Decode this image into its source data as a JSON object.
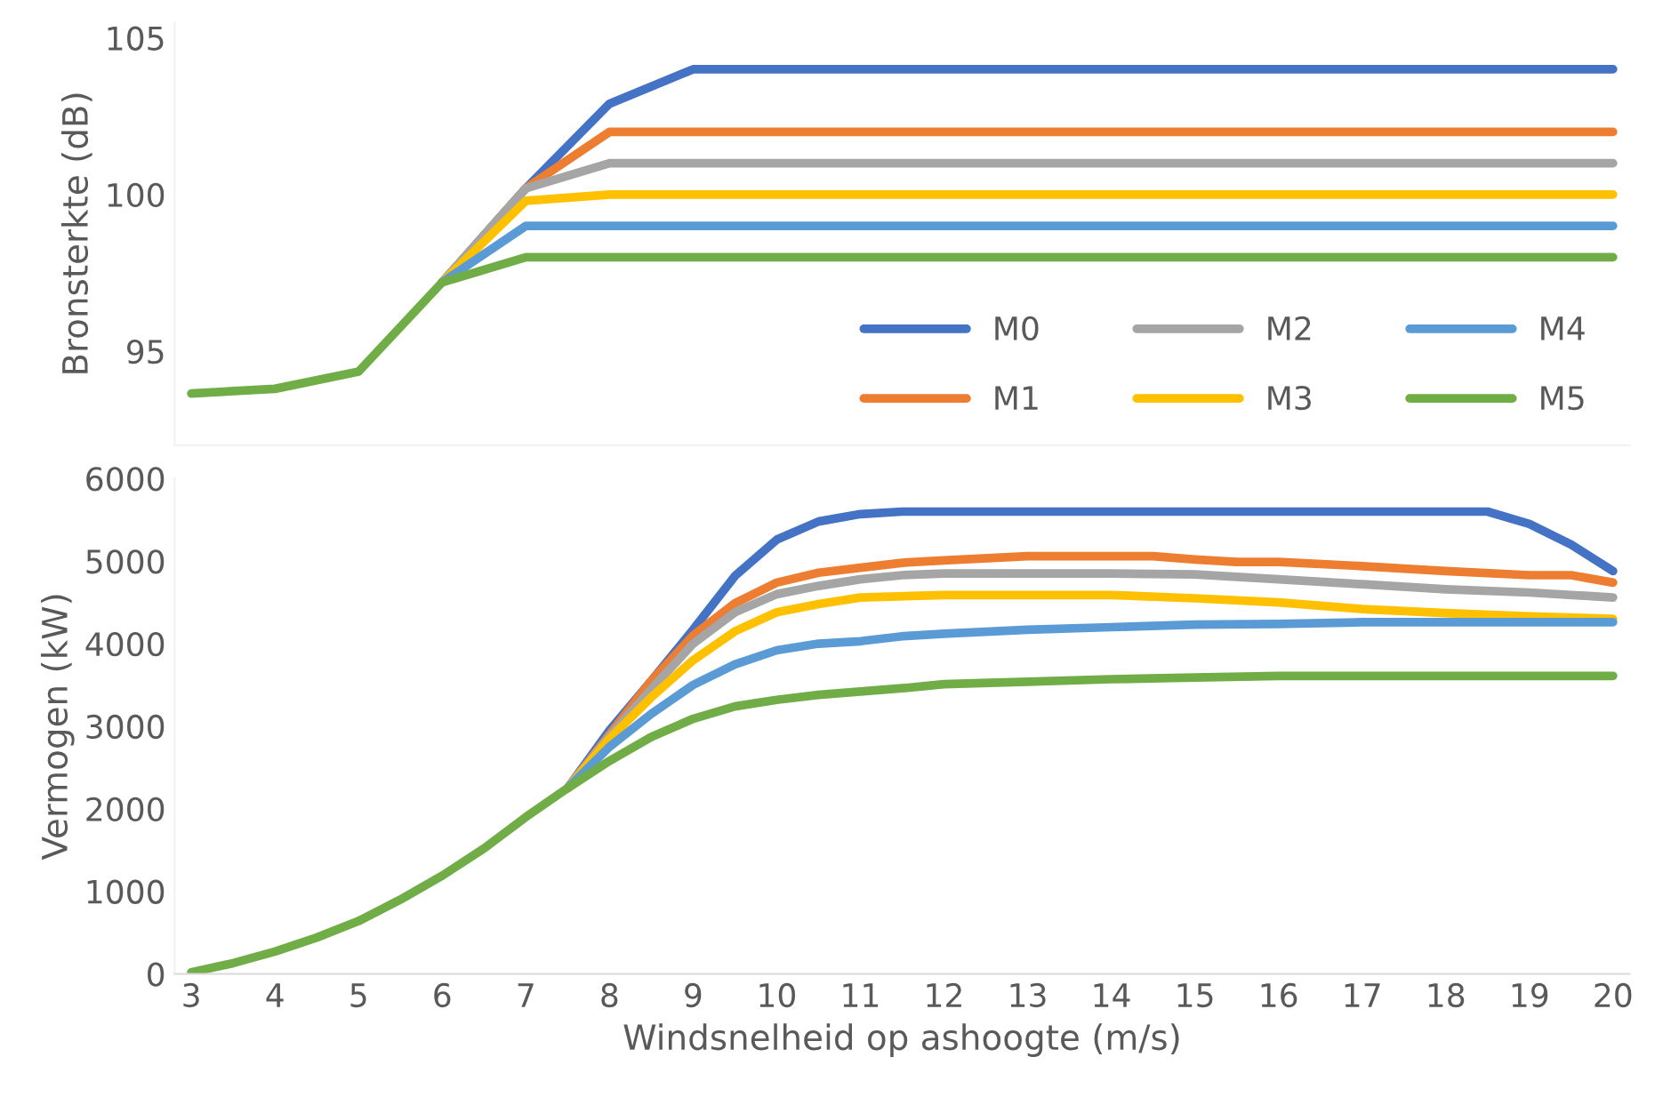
{
  "chart_data": [
    {
      "type": "line",
      "ylabel": "Bronsterkte (dB)",
      "xlim": [
        2.8,
        20.2
      ],
      "ylim": [
        92,
        105.5
      ],
      "yticks": [
        95,
        100,
        105
      ],
      "tick_labels": "y",
      "grid": false,
      "legend": "bottom right",
      "marker": "none",
      "line_style": "solid",
      "series": [
        {
          "name": "M0",
          "color": "#4472c4",
          "x": [
            6,
            7,
            8,
            9,
            20
          ],
          "values": [
            97.2,
            100.2,
            102.9,
            104,
            104
          ]
        },
        {
          "name": "M1",
          "color": "#ed7d31",
          "x": [
            6,
            7,
            8,
            20
          ],
          "values": [
            97.2,
            100.2,
            102,
            102
          ]
        },
        {
          "name": "M2",
          "color": "#a5a5a5",
          "x": [
            6,
            7,
            8,
            20
          ],
          "values": [
            97.2,
            100.2,
            101,
            101
          ]
        },
        {
          "name": "M3",
          "color": "#ffc000",
          "x": [
            6,
            7,
            8,
            20
          ],
          "values": [
            97.2,
            99.8,
            100,
            100
          ]
        },
        {
          "name": "M4",
          "color": "#5b9bd5",
          "x": [
            6,
            7,
            20
          ],
          "values": [
            97.2,
            99,
            99
          ]
        },
        {
          "name": "M5",
          "color": "#70ad47",
          "x": [
            3,
            4,
            5,
            6,
            7,
            20
          ],
          "values": [
            93.65,
            93.8,
            94.35,
            97.2,
            98,
            98
          ]
        }
      ]
    },
    {
      "type": "line",
      "xlabel": "Windsnelheid op ashoogte (m/s)",
      "ylabel": "Vermogen (kW)",
      "xlim": [
        2.8,
        20.2
      ],
      "ylim": [
        0,
        6000
      ],
      "xticks": [
        3,
        4,
        5,
        6,
        7,
        8,
        9,
        10,
        11,
        12,
        13,
        14,
        15,
        16,
        17,
        18,
        19,
        20
      ],
      "yticks": [
        0,
        1000,
        2000,
        3000,
        4000,
        5000,
        6000
      ],
      "grid": false,
      "legend": false,
      "marker": "none",
      "line_style": "solid",
      "series": [
        {
          "color": "#4472c4",
          "x": [
            7.5,
            8,
            8.5,
            9,
            9.5,
            10,
            10.5,
            11,
            11.5,
            18.5,
            19,
            19.5,
            20
          ],
          "values": [
            2250,
            2950,
            3550,
            4170,
            4820,
            5260,
            5480,
            5570,
            5600,
            5600,
            5450,
            5200,
            4880
          ]
        },
        {
          "color": "#ed7d31",
          "x": [
            7.5,
            8,
            8.5,
            9,
            9.5,
            10,
            10.5,
            11,
            11.5,
            12,
            13,
            14,
            14.5,
            15,
            15.5,
            16,
            17,
            18,
            19,
            19.5,
            20
          ],
          "values": [
            2250,
            2900,
            3550,
            4100,
            4490,
            4740,
            4860,
            4920,
            4980,
            5010,
            5060,
            5060,
            5060,
            5020,
            4990,
            4990,
            4940,
            4880,
            4830,
            4830,
            4740
          ]
        },
        {
          "color": "#a5a5a5",
          "x": [
            7.5,
            8,
            8.5,
            9,
            9.5,
            10,
            10.5,
            11,
            11.5,
            12,
            13,
            14,
            15,
            16,
            17,
            18,
            19,
            20
          ],
          "values": [
            2250,
            2880,
            3450,
            4000,
            4380,
            4600,
            4700,
            4780,
            4830,
            4850,
            4850,
            4850,
            4840,
            4780,
            4720,
            4660,
            4620,
            4560
          ]
        },
        {
          "color": "#ffc000",
          "x": [
            7.5,
            8,
            8.5,
            9,
            9.5,
            10,
            10.5,
            11,
            12,
            13,
            14,
            15,
            16,
            17,
            18,
            19,
            20
          ],
          "values": [
            2250,
            2850,
            3350,
            3800,
            4150,
            4380,
            4480,
            4560,
            4590,
            4590,
            4590,
            4550,
            4500,
            4420,
            4370,
            4330,
            4300
          ]
        },
        {
          "color": "#5b9bd5",
          "x": [
            7.5,
            8,
            8.5,
            9,
            9.5,
            10,
            10.5,
            11,
            11.5,
            12,
            13,
            14,
            15,
            16,
            17,
            18,
            19,
            20
          ],
          "values": [
            2250,
            2750,
            3150,
            3500,
            3750,
            3920,
            4000,
            4030,
            4090,
            4120,
            4170,
            4200,
            4230,
            4240,
            4260,
            4260,
            4260,
            4260
          ]
        },
        {
          "color": "#70ad47",
          "x": [
            3,
            3.5,
            4,
            4.5,
            5,
            5.5,
            6,
            6.5,
            7,
            7.5,
            8,
            8.5,
            9,
            9.5,
            10,
            10.5,
            11,
            11.5,
            12,
            13,
            14,
            15,
            16,
            17,
            18,
            19,
            20
          ],
          "values": [
            20,
            130,
            270,
            440,
            640,
            900,
            1190,
            1520,
            1900,
            2250,
            2580,
            2870,
            3090,
            3240,
            3320,
            3380,
            3420,
            3460,
            3510,
            3540,
            3570,
            3590,
            3610,
            3610,
            3610,
            3610,
            3610
          ]
        }
      ]
    }
  ]
}
